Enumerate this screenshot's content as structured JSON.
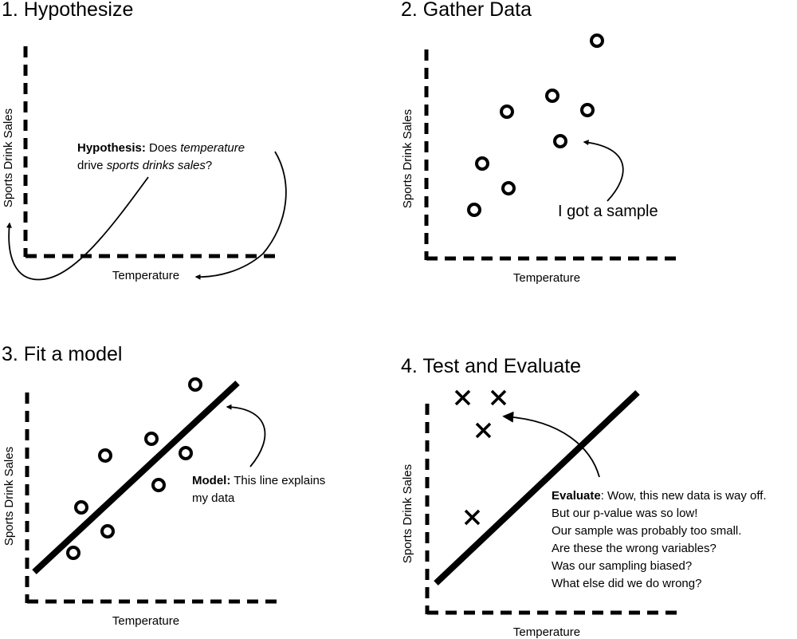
{
  "colors": {
    "ink": "#000000",
    "background": "#ffffff"
  },
  "panels": [
    {
      "title": "1. Hypothesize",
      "xlabel": "Temperature",
      "ylabel": "Sports Drink Sales",
      "annotation": {
        "lead": "Hypothesis:",
        "line1_a": " Does ",
        "line1_em": "temperature",
        "line2_a": "drive ",
        "line2_em": "sports drinks sales",
        "line2_b": "?"
      }
    },
    {
      "title": "2. Gather Data",
      "xlabel": "Temperature",
      "ylabel": "Sports Drink Sales",
      "annotation": {
        "text": "I got a sample"
      }
    },
    {
      "title": "3. Fit a model",
      "xlabel": "Temperature",
      "ylabel": "Sports Drink Sales",
      "annotation": {
        "lead": "Model:",
        "line1": " This line explains",
        "line2": "my data"
      }
    },
    {
      "title": "4. Test and Evaluate",
      "xlabel": "Temperature",
      "ylabel": "Sports Drink Sales",
      "annotation": {
        "lead": "Evaluate",
        "line1": ": Wow, this new data is way off.",
        "lines": [
          "But our p-value was so low!",
          "Our sample was probably too small.",
          "Are these the wrong variables?",
          "Was our sampling biased?",
          "What else did we do wrong?"
        ]
      }
    }
  ]
}
